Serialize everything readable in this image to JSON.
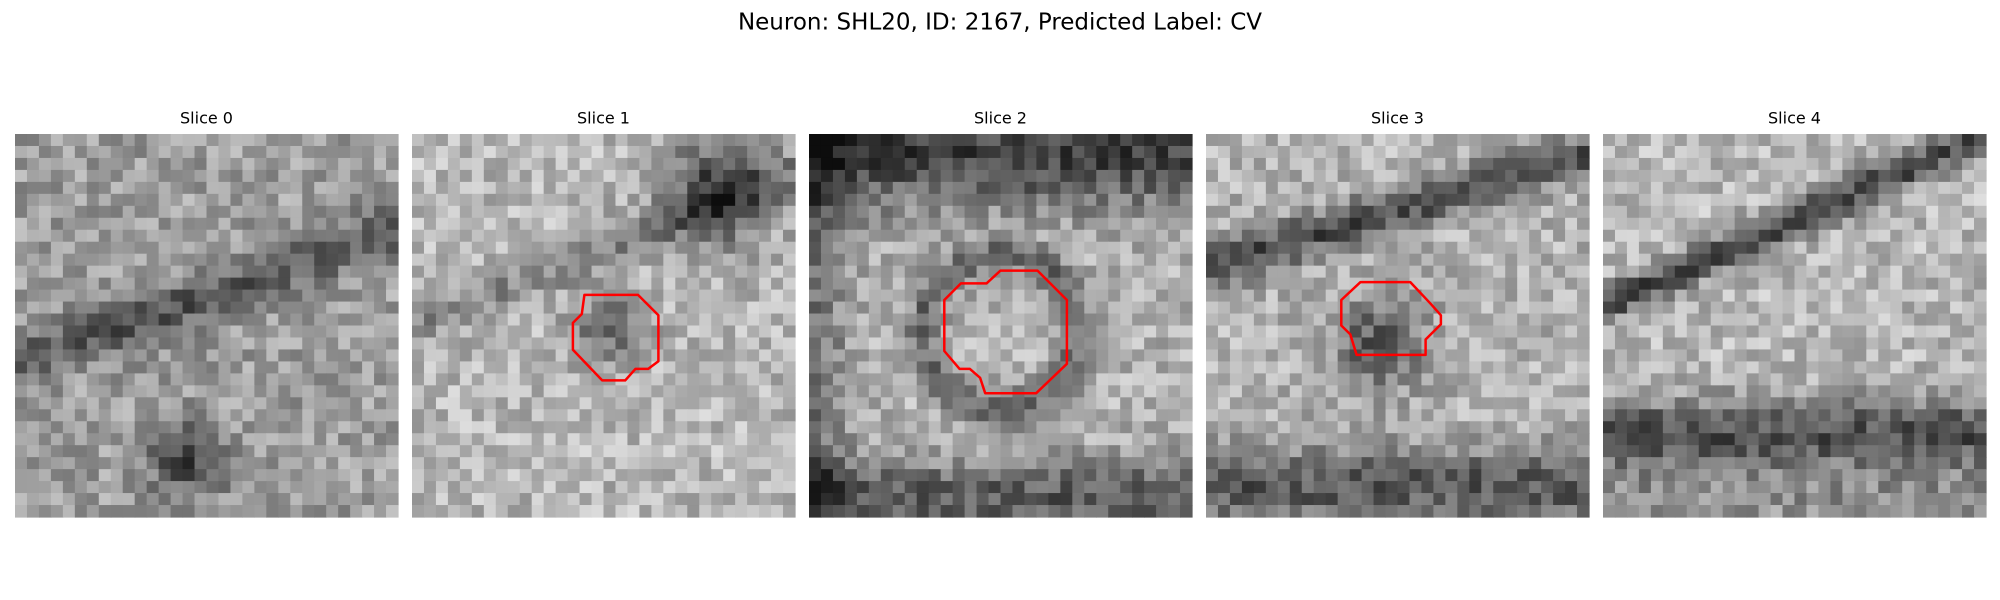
{
  "title": "Neuron: SHL20, ID: 2167, Predicted Label: CV",
  "panels": [
    {
      "title": "Slice 0"
    },
    {
      "title": "Slice 1"
    },
    {
      "title": "Slice 2"
    },
    {
      "title": "Slice 3"
    },
    {
      "title": "Slice 4"
    }
  ]
}
